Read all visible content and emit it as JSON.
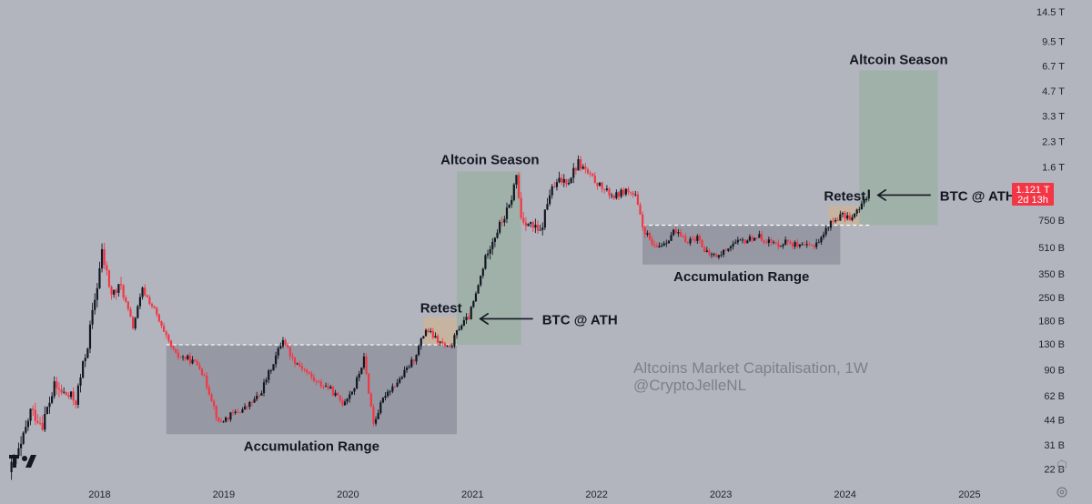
{
  "colors": {
    "background": "#b2b5be",
    "candle_up": "#131722",
    "candle_down": "#f23645",
    "accumulation_box": "#9598a1",
    "season_box": "#9bb0a6",
    "retest_box": "#c9b49c",
    "support_line": "#ffffff",
    "price_badge": "#f23645"
  },
  "icons": [
    "tradingview-logo-icon",
    "settings-icon",
    "auto-scale-icon"
  ],
  "watermark": {
    "line1": "Altcoins Market Capitalisation, 1W",
    "line2": "@CryptoJelleNL"
  },
  "price_badge": {
    "price": "1.121 T",
    "countdown": "2d 13h"
  },
  "annotations": {
    "accumulation_1": "Accumulation Range",
    "accumulation_2": "Accumulation Range",
    "season_1": "Altcoin Season",
    "season_2": "Altcoin Season",
    "retest_1": "Retest",
    "retest_2": "Retest",
    "btc_ath_1": "BTC @ ATH",
    "btc_ath_2": "BTC @ ATH"
  },
  "chart_data": {
    "type": "candlestick",
    "title": "Altcoins Market Capitalisation, 1W",
    "y_scale": "log",
    "ylim": [
      20000000000,
      15000000000000
    ],
    "xlim": [
      "2017-04-10",
      "2025-11-20"
    ],
    "y_ticks": [
      {
        "label": "14.5 T",
        "value": 14500000000000
      },
      {
        "label": "9.5 T",
        "value": 9500000000000
      },
      {
        "label": "6.7 T",
        "value": 6700000000000
      },
      {
        "label": "4.7 T",
        "value": 4700000000000
      },
      {
        "label": "3.3 T",
        "value": 3300000000000
      },
      {
        "label": "2.3 T",
        "value": 2300000000000
      },
      {
        "label": "1.6 T",
        "value": 1600000000000
      },
      {
        "label": "750 B",
        "value": 750000000000
      },
      {
        "label": "510 B",
        "value": 510000000000
      },
      {
        "label": "350 B",
        "value": 350000000000
      },
      {
        "label": "250 B",
        "value": 250000000000
      },
      {
        "label": "180 B",
        "value": 180000000000
      },
      {
        "label": "130 B",
        "value": 130000000000
      },
      {
        "label": "90 B",
        "value": 90000000000
      },
      {
        "label": "62 B",
        "value": 62000000000
      },
      {
        "label": "44 B",
        "value": 44000000000
      },
      {
        "label": "31 B",
        "value": 31000000000
      },
      {
        "label": "22 B",
        "value": 22000000000
      }
    ],
    "x_ticks": [
      {
        "label": "2018",
        "date": "2018-01-01"
      },
      {
        "label": "2019",
        "date": "2019-01-01"
      },
      {
        "label": "2020",
        "date": "2020-01-01"
      },
      {
        "label": "2021",
        "date": "2021-01-01"
      },
      {
        "label": "2022",
        "date": "2022-01-01"
      },
      {
        "label": "2023",
        "date": "2023-01-01"
      },
      {
        "label": "2024",
        "date": "2024-01-01"
      },
      {
        "label": "2025",
        "date": "2025-01-01"
      }
    ],
    "last_price": 1121000000000,
    "close_path": [
      [
        "2017-04-10",
        21000000000
      ],
      [
        "2017-05-15",
        30000000000
      ],
      [
        "2017-06-12",
        50000000000
      ],
      [
        "2017-07-17",
        42000000000
      ],
      [
        "2017-08-21",
        70000000000
      ],
      [
        "2017-09-18",
        64000000000
      ],
      [
        "2017-10-23",
        58000000000
      ],
      [
        "2017-11-27",
        130000000000
      ],
      [
        "2017-12-25",
        300000000000
      ],
      [
        "2018-01-08",
        470000000000
      ],
      [
        "2018-02-05",
        260000000000
      ],
      [
        "2018-03-05",
        290000000000
      ],
      [
        "2018-04-09",
        165000000000
      ],
      [
        "2018-05-07",
        280000000000
      ],
      [
        "2018-06-11",
        210000000000
      ],
      [
        "2018-07-09",
        150000000000
      ],
      [
        "2018-08-13",
        110000000000
      ],
      [
        "2018-09-17",
        105000000000
      ],
      [
        "2018-10-22",
        95000000000
      ],
      [
        "2018-11-26",
        60000000000
      ],
      [
        "2018-12-17",
        42000000000
      ],
      [
        "2019-01-21",
        47000000000
      ],
      [
        "2019-03-04",
        52000000000
      ],
      [
        "2019-04-15",
        62000000000
      ],
      [
        "2019-05-27",
        100000000000
      ],
      [
        "2019-06-24",
        140000000000
      ],
      [
        "2019-07-22",
        105000000000
      ],
      [
        "2019-08-26",
        90000000000
      ],
      [
        "2019-09-30",
        75000000000
      ],
      [
        "2019-11-04",
        70000000000
      ],
      [
        "2019-12-16",
        56000000000
      ],
      [
        "2020-01-20",
        70000000000
      ],
      [
        "2020-02-17",
        105000000000
      ],
      [
        "2020-03-16",
        42000000000
      ],
      [
        "2020-04-20",
        64000000000
      ],
      [
        "2020-06-01",
        78000000000
      ],
      [
        "2020-07-13",
        105000000000
      ],
      [
        "2020-08-17",
        160000000000
      ],
      [
        "2020-09-21",
        135000000000
      ],
      [
        "2020-10-26",
        120000000000
      ],
      [
        "2020-11-23",
        165000000000
      ],
      [
        "2020-12-21",
        190000000000
      ],
      [
        "2021-01-11",
        260000000000
      ],
      [
        "2021-02-15",
        500000000000
      ],
      [
        "2021-03-15",
        650000000000
      ],
      [
        "2021-04-19",
        900000000000
      ],
      [
        "2021-05-10",
        1400000000000
      ],
      [
        "2021-05-24",
        780000000000
      ],
      [
        "2021-06-21",
        700000000000
      ],
      [
        "2021-07-19",
        620000000000
      ],
      [
        "2021-08-16",
        1100000000000
      ],
      [
        "2021-09-13",
        1300000000000
      ],
      [
        "2021-10-11",
        1350000000000
      ],
      [
        "2021-11-08",
        1700000000000
      ],
      [
        "2021-12-13",
        1400000000000
      ],
      [
        "2022-01-24",
        1150000000000
      ],
      [
        "2022-02-21",
        1050000000000
      ],
      [
        "2022-03-28",
        1150000000000
      ],
      [
        "2022-04-25",
        1050000000000
      ],
      [
        "2022-05-16",
        680000000000
      ],
      [
        "2022-06-20",
        500000000000
      ],
      [
        "2022-07-25",
        560000000000
      ],
      [
        "2022-08-15",
        640000000000
      ],
      [
        "2022-09-19",
        560000000000
      ],
      [
        "2022-10-31",
        590000000000
      ],
      [
        "2022-11-14",
        470000000000
      ],
      [
        "2022-12-26",
        450000000000
      ],
      [
        "2023-01-30",
        530000000000
      ],
      [
        "2023-03-13",
        560000000000
      ],
      [
        "2023-04-17",
        600000000000
      ],
      [
        "2023-06-12",
        530000000000
      ],
      [
        "2023-07-17",
        560000000000
      ],
      [
        "2023-08-21",
        510000000000
      ],
      [
        "2023-09-25",
        520000000000
      ],
      [
        "2023-10-23",
        580000000000
      ],
      [
        "2023-11-13",
        700000000000
      ],
      [
        "2023-12-18",
        800000000000
      ],
      [
        "2024-01-22",
        780000000000
      ],
      [
        "2024-02-19",
        920000000000
      ],
      [
        "2024-03-11",
        1150000000000
      ]
    ],
    "zones": [
      {
        "type": "accumulation",
        "label": "Accumulation Range",
        "x_start": "2018-07-16",
        "x_end": "2020-11-16",
        "y_low": 36000000000,
        "y_high": 128000000000
      },
      {
        "type": "retest",
        "label": "Retest",
        "x_start": "2020-08-10",
        "x_end": "2020-11-16",
        "y_low": 128000000000,
        "y_high": 190000000000
      },
      {
        "type": "season",
        "label": "Altcoin Season",
        "x_start": "2020-11-16",
        "x_end": "2021-05-24",
        "y_low": 128000000000,
        "y_high": 1500000000000
      },
      {
        "type": "accumulation",
        "label": "Accumulation Range",
        "x_start": "2022-05-16",
        "x_end": "2023-12-18",
        "y_low": 400000000000,
        "y_high": 700000000000
      },
      {
        "type": "retest",
        "label": "Retest",
        "x_start": "2023-11-13",
        "x_end": "2024-02-12",
        "y_low": 700000000000,
        "y_high": 920000000000
      },
      {
        "type": "season",
        "label": "Altcoin Season",
        "x_start": "2024-02-12",
        "x_end": "2024-09-30",
        "y_low": 700000000000,
        "y_high": 6300000000000
      }
    ],
    "support_levels": [
      {
        "value": 128000000000,
        "x_start": "2018-07-16",
        "x_end": "2020-11-16"
      },
      {
        "value": 700000000000,
        "x_start": "2022-05-16",
        "x_end": "2024-03-18"
      }
    ],
    "arrows": [
      {
        "label": "BTC @ ATH",
        "date": "2020-12-28",
        "value": 190000000000
      },
      {
        "label": "BTC @ ATH",
        "date": "2024-03-11",
        "value": 1100000000000
      }
    ]
  }
}
